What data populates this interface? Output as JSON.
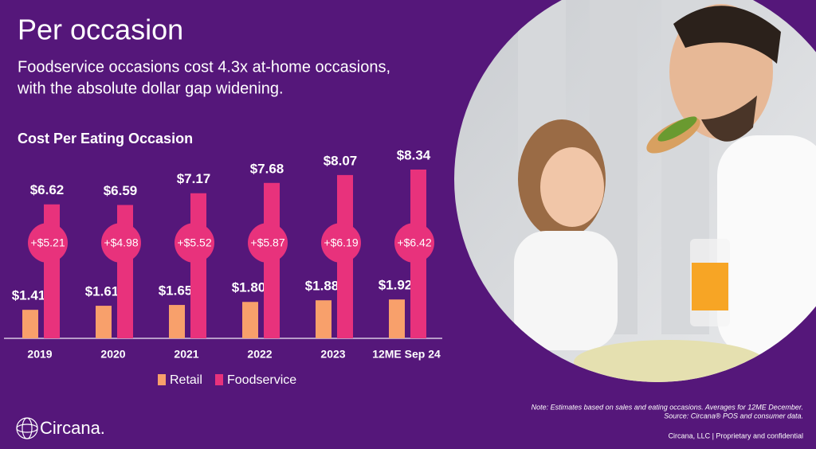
{
  "header": {
    "title": "Per occasion",
    "subtitle_lines": [
      "Foodservice occasions cost 4.3x at-home occasions,",
      "with the absolute dollar gap widening."
    ]
  },
  "chart_data": {
    "type": "bar",
    "title": "Cost Per Eating Occasion",
    "categories": [
      "2019",
      "2020",
      "2021",
      "2022",
      "2023",
      "12ME Sep 24"
    ],
    "series": [
      {
        "name": "Retail",
        "color": "#f8a06b",
        "values": [
          1.41,
          1.61,
          1.65,
          1.8,
          1.88,
          1.92
        ],
        "value_labels": [
          "$1.41",
          "$1.61",
          "$1.65",
          "$1.80",
          "$1.88",
          "$1.92"
        ]
      },
      {
        "name": "Foodservice",
        "color": "#e8327c",
        "values": [
          6.62,
          6.59,
          7.17,
          7.68,
          8.07,
          8.34
        ],
        "value_labels": [
          "$6.62",
          "$6.59",
          "$7.17",
          "$7.68",
          "$8.07",
          "$8.34"
        ]
      }
    ],
    "gaps": {
      "values": [
        5.21,
        4.98,
        5.52,
        5.87,
        6.19,
        6.42
      ],
      "value_labels": [
        "+$5.21",
        "+$4.98",
        "+$5.52",
        "+$5.87",
        "+$6.19",
        "+$6.42"
      ]
    },
    "legend": "bottom"
  },
  "footer": {
    "note": "Note: Estimates based on sales and eating occasions. Averages for 12ME December.",
    "source": "Source: Circana® POS and consumer data.",
    "company": "Circana, LLC  |  Proprietary and confidential",
    "logo": "Circana."
  }
}
